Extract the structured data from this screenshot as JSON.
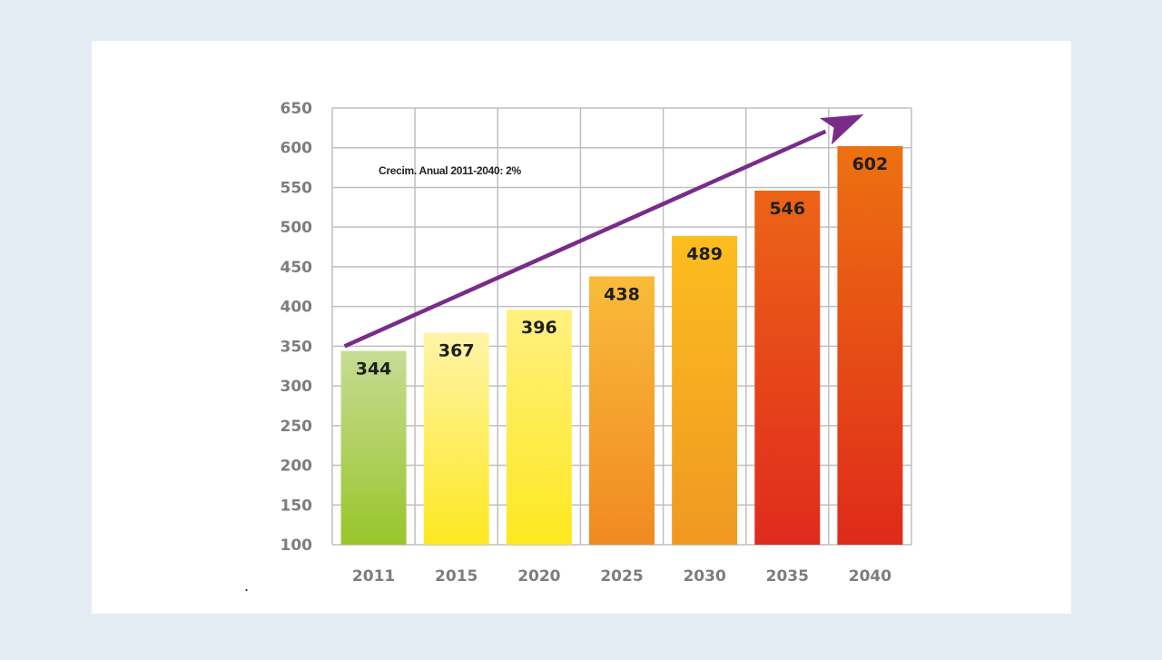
{
  "chart_data": {
    "type": "bar",
    "categories": [
      "2011",
      "2015",
      "2020",
      "2025",
      "2030",
      "2035",
      "2040"
    ],
    "values": [
      344,
      367,
      396,
      438,
      489,
      546,
      602
    ],
    "ylim": [
      100,
      650
    ],
    "yticks": [
      100,
      150,
      200,
      250,
      300,
      350,
      400,
      450,
      500,
      550,
      600,
      650
    ],
    "annotation": "Crecim. Anual 2011-2040: 2%",
    "grid": true,
    "trend_arrow": {
      "from": [
        2011,
        350
      ],
      "to": [
        2040,
        642
      ]
    },
    "colors": {
      "bars_top": [
        "#c6dc94",
        "#fff4a8",
        "#fff080",
        "#f9bb3a",
        "#fcbd1e",
        "#ec6417",
        "#ed7111"
      ],
      "bars_bottom": [
        "#99c52b",
        "#fde820",
        "#fde820",
        "#f08a21",
        "#f09822",
        "#e02a1d",
        "#df2a1a"
      ],
      "arrow": "#7a2b8a",
      "grid": "#bfbfbf"
    }
  },
  "footer_mark": "."
}
